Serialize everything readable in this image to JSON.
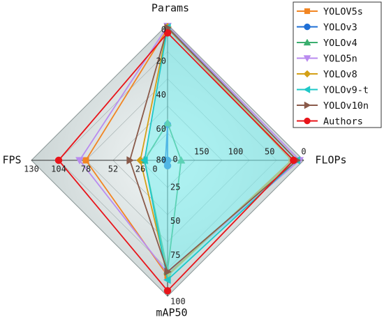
{
  "chart_data": {
    "type": "radar",
    "title": "",
    "grid": true,
    "legend_position": "top-right",
    "axes": [
      {
        "key": "params",
        "label": "Params",
        "ticks": [
          0,
          20,
          40,
          60
        ],
        "range": [
          80,
          0
        ]
      },
      {
        "key": "flops",
        "label": "FLOPs",
        "ticks": [
          0,
          50,
          100,
          150
        ],
        "range": [
          200,
          0
        ]
      },
      {
        "key": "map50",
        "label": "mAP50",
        "ticks": [
          25,
          50,
          75,
          100
        ],
        "range": [
          0,
          100
        ]
      },
      {
        "key": "fps",
        "label": "FPS",
        "ticks": [
          26,
          52,
          78,
          104,
          130
        ],
        "range": [
          0,
          130
        ]
      }
    ],
    "center_labels": {
      "params": "80",
      "flops": "0",
      "fps": "0"
    },
    "series": [
      {
        "name": "YOLOV5s",
        "color": "#f28522",
        "marker": "square",
        "values": {
          "params": 2.5,
          "flops": 18,
          "map50": 85,
          "fps": 78
        }
      },
      {
        "name": "YOLOv3",
        "color": "#1f6fd6",
        "marker": "circle",
        "values": {
          "params": 59,
          "flops": 200,
          "map50": 4,
          "fps": 2
        }
      },
      {
        "name": "YOLOv4",
        "color": "#3aae6e",
        "marker": "triangle-up",
        "values": {
          "params": 58,
          "flops": 180,
          "map50": 81,
          "fps": 22
        }
      },
      {
        "name": "YOLO5n",
        "color": "#b98bef",
        "marker": "triangle-down",
        "values": {
          "params": 1,
          "flops": 6,
          "map50": 83,
          "fps": 84
        }
      },
      {
        "name": "YOLOv8",
        "color": "#d4a017",
        "marker": "diamond",
        "values": {
          "params": 1.5,
          "flops": 15,
          "map50": 84,
          "fps": 26
        }
      },
      {
        "name": "YOLOv9-t",
        "color": "#1ec8c8",
        "marker": "triangle-left",
        "values": {
          "params": 1.8,
          "flops": 10,
          "map50": 88,
          "fps": 22
        }
      },
      {
        "name": "YOLOv10n",
        "color": "#8a5a4a",
        "marker": "triangle-right",
        "values": {
          "params": 2,
          "flops": 10,
          "map50": 82,
          "fps": 36
        }
      },
      {
        "name": "Authors",
        "color": "#e8141a",
        "marker": "circle",
        "values": {
          "params": 5,
          "flops": 15,
          "map50": 96,
          "fps": 104
        }
      }
    ]
  }
}
